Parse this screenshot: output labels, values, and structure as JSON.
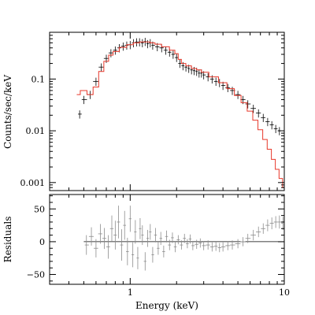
{
  "chart_data": [
    {
      "type": "scatter",
      "title": "",
      "xlabel": "",
      "ylabel": "Counts/sec/keV",
      "x_scale": "log",
      "y_scale": "log",
      "xlim": [
        0.3,
        10
      ],
      "ylim": [
        0.0007,
        0.8
      ],
      "x_ticks": [],
      "y_ticks": [
        {
          "value": 0.1,
          "label": "0.1"
        },
        {
          "value": 0.01,
          "label": "0.01"
        },
        {
          "value": 0.001,
          "label": "0.001"
        }
      ],
      "grid": false,
      "legend": "none",
      "series": [
        {
          "kind": "data-with-errorbars",
          "color": "#000000",
          "x": [
            0.47,
            0.5,
            0.55,
            0.6,
            0.65,
            0.7,
            0.75,
            0.8,
            0.85,
            0.9,
            0.95,
            1.0,
            1.05,
            1.1,
            1.15,
            1.2,
            1.25,
            1.3,
            1.35,
            1.4,
            1.5,
            1.6,
            1.7,
            1.8,
            1.9,
            2.0,
            2.1,
            2.2,
            2.3,
            2.4,
            2.5,
            2.6,
            2.7,
            2.8,
            2.9,
            3.0,
            3.2,
            3.4,
            3.6,
            3.8,
            4.0,
            4.3,
            4.6,
            5.0,
            5.4,
            5.8,
            6.3,
            6.8,
            7.3,
            7.8,
            8.3,
            8.8,
            9.3
          ],
          "y": [
            0.021,
            0.04,
            0.05,
            0.09,
            0.17,
            0.25,
            0.32,
            0.36,
            0.4,
            0.43,
            0.45,
            0.46,
            0.5,
            0.52,
            0.52,
            0.5,
            0.53,
            0.48,
            0.5,
            0.45,
            0.42,
            0.4,
            0.36,
            0.33,
            0.3,
            0.26,
            0.2,
            0.18,
            0.17,
            0.16,
            0.15,
            0.145,
            0.14,
            0.13,
            0.13,
            0.12,
            0.11,
            0.1,
            0.09,
            0.085,
            0.075,
            0.068,
            0.06,
            0.05,
            0.04,
            0.033,
            0.027,
            0.022,
            0.018,
            0.015,
            0.013,
            0.011,
            0.01
          ],
          "y_err_frac": 0.18
        },
        {
          "kind": "model",
          "color": "#e8382b",
          "x": [
            0.45,
            0.5,
            0.55,
            0.6,
            0.65,
            0.7,
            0.75,
            0.8,
            0.9,
            1.0,
            1.1,
            1.2,
            1.3,
            1.4,
            1.5,
            1.7,
            1.9,
            2.0,
            2.1,
            2.2,
            2.4,
            2.6,
            2.8,
            3.0,
            3.5,
            4.0,
            4.5,
            5.0,
            5.5,
            6.0,
            6.5,
            7.0,
            7.5,
            8.0,
            8.5,
            9.0,
            9.5,
            10.0
          ],
          "y": [
            0.05,
            0.06,
            0.05,
            0.07,
            0.14,
            0.22,
            0.29,
            0.34,
            0.41,
            0.46,
            0.5,
            0.52,
            0.52,
            0.5,
            0.47,
            0.42,
            0.36,
            0.31,
            0.24,
            0.2,
            0.18,
            0.16,
            0.15,
            0.135,
            0.11,
            0.085,
            0.065,
            0.048,
            0.035,
            0.024,
            0.016,
            0.0105,
            0.0068,
            0.0044,
            0.0028,
            0.0018,
            0.0012,
            0.0008
          ]
        }
      ]
    },
    {
      "type": "scatter",
      "title": "",
      "xlabel": "Energy (keV)",
      "ylabel": "Residuals",
      "x_scale": "log",
      "xlim": [
        0.3,
        10
      ],
      "ylim": [
        -65,
        72
      ],
      "x_ticks": [
        {
          "value": 1,
          "label": "1"
        },
        {
          "value": 10,
          "label": "10"
        }
      ],
      "y_ticks": [
        {
          "value": 50,
          "label": "50"
        },
        {
          "value": 0,
          "label": "0"
        },
        {
          "value": -50,
          "label": "−50"
        }
      ],
      "zero_line": {
        "value": 0,
        "x_from": 0.5,
        "x_to": 10
      },
      "grid": false,
      "legend": "none",
      "series": [
        {
          "kind": "residual-bars",
          "color": "#8c8c8c",
          "x": [
            0.52,
            0.56,
            0.6,
            0.64,
            0.68,
            0.72,
            0.76,
            0.8,
            0.84,
            0.88,
            0.92,
            0.96,
            1.0,
            1.04,
            1.08,
            1.12,
            1.16,
            1.2,
            1.25,
            1.3,
            1.35,
            1.4,
            1.46,
            1.52,
            1.58,
            1.65,
            1.72,
            1.8,
            1.88,
            1.96,
            2.05,
            2.15,
            2.25,
            2.35,
            2.45,
            2.55,
            2.7,
            2.85,
            3.0,
            3.2,
            3.4,
            3.6,
            3.8,
            4.0,
            4.3,
            4.6,
            5.0,
            5.4,
            5.8,
            6.3,
            6.8,
            7.3,
            7.8,
            8.3,
            8.8,
            9.3,
            9.8
          ],
          "y": [
            -5,
            8,
            -10,
            12,
            5,
            -8,
            20,
            10,
            30,
            -5,
            25,
            -15,
            35,
            -20,
            15,
            -25,
            20,
            10,
            -30,
            5,
            15,
            -20,
            10,
            -10,
            5,
            -15,
            8,
            -5,
            6,
            -8,
            3,
            -5,
            5,
            -3,
            4,
            -6,
            -4,
            -2,
            -6,
            -5,
            -8,
            -7,
            -9,
            -8,
            -6,
            -5,
            -3,
            0,
            5,
            10,
            15,
            20,
            25,
            28,
            30,
            30,
            28
          ],
          "err": [
            15,
            14,
            14,
            15,
            16,
            18,
            20,
            22,
            25,
            24,
            22,
            21,
            20,
            19,
            18,
            17,
            16,
            15,
            14,
            13,
            12,
            12,
            11,
            10,
            10,
            9,
            9,
            8,
            8,
            8,
            7,
            7,
            7,
            7,
            7,
            7,
            7,
            7,
            7,
            7,
            7,
            7,
            7,
            7,
            7,
            7,
            7,
            7,
            7,
            8,
            8,
            8,
            9,
            9,
            9,
            10,
            10
          ]
        }
      ]
    }
  ]
}
